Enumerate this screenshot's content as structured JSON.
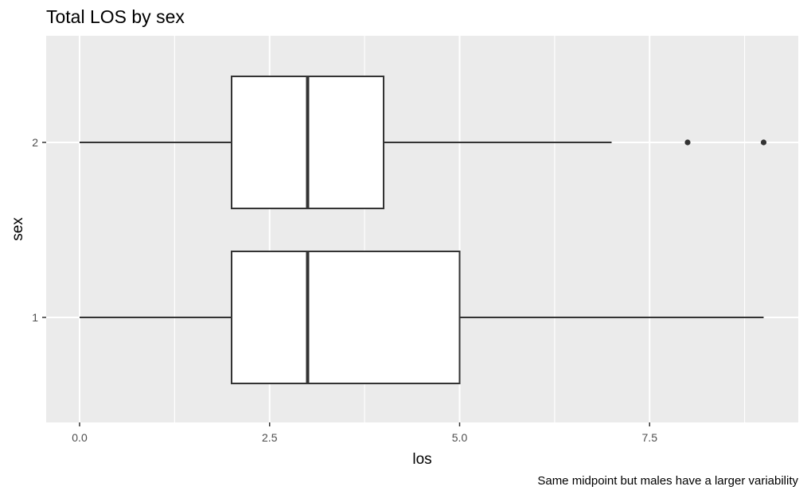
{
  "chart_data": {
    "type": "boxplot",
    "orientation": "horizontal",
    "title": "Total LOS by sex",
    "xlabel": "los",
    "ylabel": "sex",
    "caption": "Same midpoint but males have a larger variability",
    "xlim": [
      -0.2,
      9.2
    ],
    "xticks": [
      "0.0",
      "2.5",
      "5.0",
      "7.5"
    ],
    "xtick_values": [
      0,
      2.5,
      5,
      7.5
    ],
    "categories": [
      "1",
      "2"
    ],
    "boxes": [
      {
        "category": "1",
        "min": 0,
        "q1": 2,
        "median": 3,
        "q3": 5,
        "max": 9,
        "outliers": []
      },
      {
        "category": "2",
        "min": 0,
        "q1": 2,
        "median": 3,
        "q3": 4,
        "max": 7,
        "outliers": [
          8,
          9
        ]
      }
    ],
    "grid": true,
    "colors": {
      "panel": "#ebebeb",
      "grid": "#ffffff",
      "box_fill": "#ffffff",
      "box_line": "#333333"
    }
  }
}
